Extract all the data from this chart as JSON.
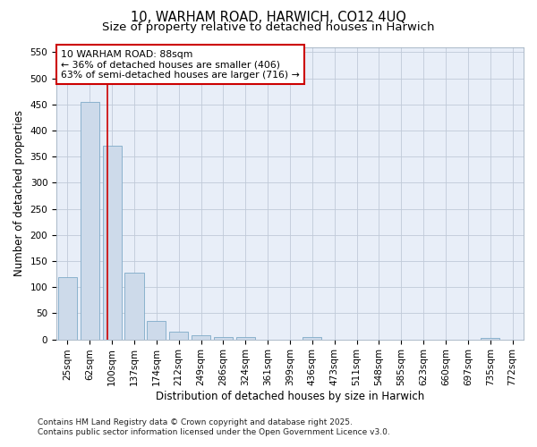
{
  "title_line1": "10, WARHAM ROAD, HARWICH, CO12 4UQ",
  "title_line2": "Size of property relative to detached houses in Harwich",
  "xlabel": "Distribution of detached houses by size in Harwich",
  "ylabel": "Number of detached properties",
  "categories": [
    "25sqm",
    "62sqm",
    "100sqm",
    "137sqm",
    "174sqm",
    "212sqm",
    "249sqm",
    "286sqm",
    "324sqm",
    "361sqm",
    "399sqm",
    "436sqm",
    "473sqm",
    "511sqm",
    "548sqm",
    "585sqm",
    "623sqm",
    "660sqm",
    "697sqm",
    "735sqm",
    "772sqm"
  ],
  "values": [
    120,
    455,
    370,
    128,
    35,
    15,
    8,
    5,
    4,
    0,
    0,
    4,
    0,
    0,
    0,
    0,
    0,
    0,
    0,
    3,
    0
  ],
  "bar_color": "#cddaea",
  "bar_edge_color": "#7eaac8",
  "vline_x": 1.78,
  "vline_color": "#cc0000",
  "annotation_line1": "10 WARHAM ROAD: 88sqm",
  "annotation_line2": "← 36% of detached houses are smaller (406)",
  "annotation_line3": "63% of semi-detached houses are larger (716) →",
  "annotation_box_facecolor": "#ffffff",
  "annotation_box_edgecolor": "#cc0000",
  "footer_line1": "Contains HM Land Registry data © Crown copyright and database right 2025.",
  "footer_line2": "Contains public sector information licensed under the Open Government Licence v3.0.",
  "ylim": [
    0,
    560
  ],
  "yticks": [
    0,
    50,
    100,
    150,
    200,
    250,
    300,
    350,
    400,
    450,
    500,
    550
  ],
  "plot_bg_color": "#e8eef8",
  "fig_bg_color": "#ffffff",
  "grid_color": "#c0cad8",
  "title_fontsize": 10.5,
  "subtitle_fontsize": 9.5,
  "axis_label_fontsize": 8.5,
  "tick_fontsize": 7.5,
  "annotation_fontsize": 7.8,
  "footer_fontsize": 6.5
}
